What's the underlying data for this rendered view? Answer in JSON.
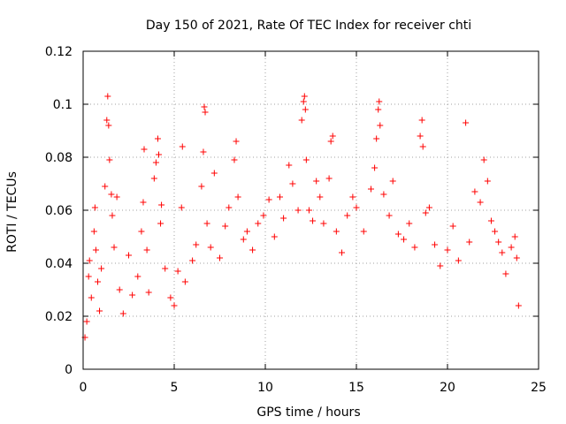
{
  "chart_data": {
    "type": "scatter",
    "title": "Day 150 of 2021, Rate Of TEC Index for receiver chti",
    "xlabel": "GPS time / hours",
    "ylabel": "ROTI / TECUs",
    "xlim": [
      0,
      25
    ],
    "ylim": [
      0,
      0.12
    ],
    "xticks": [
      0,
      5,
      10,
      15,
      20,
      25
    ],
    "xtick_labels": [
      "0",
      "5",
      "10",
      "15",
      "20",
      "25"
    ],
    "yticks": [
      0,
      0.02,
      0.04,
      0.06,
      0.08,
      0.1,
      0.12
    ],
    "ytick_labels": [
      "0",
      "0.02",
      "0.04",
      "0.06",
      "0.08",
      "0.1",
      "0.12"
    ],
    "grid": true,
    "marker": "plus",
    "color": "#ff0000",
    "series": [
      {
        "points": [
          [
            0.1,
            0.012
          ],
          [
            0.2,
            0.018
          ],
          [
            0.3,
            0.035
          ],
          [
            0.35,
            0.041
          ],
          [
            0.45,
            0.027
          ],
          [
            0.6,
            0.052
          ],
          [
            0.65,
            0.061
          ],
          [
            0.7,
            0.045
          ],
          [
            0.8,
            0.033
          ],
          [
            0.9,
            0.022
          ],
          [
            1.0,
            0.038
          ],
          [
            1.2,
            0.069
          ],
          [
            1.3,
            0.094
          ],
          [
            1.35,
            0.103
          ],
          [
            1.4,
            0.092
          ],
          [
            1.45,
            0.079
          ],
          [
            1.55,
            0.066
          ],
          [
            1.6,
            0.058
          ],
          [
            1.7,
            0.046
          ],
          [
            1.85,
            0.065
          ],
          [
            2.0,
            0.03
          ],
          [
            2.2,
            0.021
          ],
          [
            2.5,
            0.043
          ],
          [
            2.7,
            0.028
          ],
          [
            3.0,
            0.035
          ],
          [
            3.2,
            0.052
          ],
          [
            3.3,
            0.063
          ],
          [
            3.35,
            0.083
          ],
          [
            3.5,
            0.045
          ],
          [
            3.6,
            0.029
          ],
          [
            3.9,
            0.072
          ],
          [
            4.0,
            0.078
          ],
          [
            4.1,
            0.087
          ],
          [
            4.15,
            0.081
          ],
          [
            4.25,
            0.055
          ],
          [
            4.3,
            0.062
          ],
          [
            4.5,
            0.038
          ],
          [
            4.8,
            0.027
          ],
          [
            5.0,
            0.024
          ],
          [
            5.2,
            0.037
          ],
          [
            5.4,
            0.061
          ],
          [
            5.45,
            0.084
          ],
          [
            5.6,
            0.033
          ],
          [
            6.0,
            0.041
          ],
          [
            6.2,
            0.047
          ],
          [
            6.5,
            0.069
          ],
          [
            6.6,
            0.082
          ],
          [
            6.65,
            0.099
          ],
          [
            6.7,
            0.097
          ],
          [
            6.8,
            0.055
          ],
          [
            7.0,
            0.046
          ],
          [
            7.2,
            0.074
          ],
          [
            7.5,
            0.042
          ],
          [
            7.8,
            0.054
          ],
          [
            8.0,
            0.061
          ],
          [
            8.3,
            0.079
          ],
          [
            8.4,
            0.086
          ],
          [
            8.5,
            0.065
          ],
          [
            8.8,
            0.049
          ],
          [
            9.0,
            0.052
          ],
          [
            9.3,
            0.045
          ],
          [
            9.6,
            0.055
          ],
          [
            9.9,
            0.058
          ],
          [
            10.2,
            0.064
          ],
          [
            10.5,
            0.05
          ],
          [
            10.8,
            0.065
          ],
          [
            11.0,
            0.057
          ],
          [
            11.3,
            0.077
          ],
          [
            11.5,
            0.07
          ],
          [
            11.8,
            0.06
          ],
          [
            12.0,
            0.094
          ],
          [
            12.1,
            0.101
          ],
          [
            12.15,
            0.103
          ],
          [
            12.2,
            0.098
          ],
          [
            12.25,
            0.079
          ],
          [
            12.4,
            0.06
          ],
          [
            12.6,
            0.056
          ],
          [
            12.8,
            0.071
          ],
          [
            13.0,
            0.065
          ],
          [
            13.2,
            0.055
          ],
          [
            13.5,
            0.072
          ],
          [
            13.6,
            0.086
          ],
          [
            13.7,
            0.088
          ],
          [
            13.9,
            0.052
          ],
          [
            14.2,
            0.044
          ],
          [
            14.5,
            0.058
          ],
          [
            14.8,
            0.065
          ],
          [
            15.0,
            0.061
          ],
          [
            15.4,
            0.052
          ],
          [
            15.8,
            0.068
          ],
          [
            16.0,
            0.076
          ],
          [
            16.1,
            0.087
          ],
          [
            16.2,
            0.098
          ],
          [
            16.25,
            0.101
          ],
          [
            16.3,
            0.092
          ],
          [
            16.5,
            0.066
          ],
          [
            16.8,
            0.058
          ],
          [
            17.0,
            0.071
          ],
          [
            17.3,
            0.051
          ],
          [
            17.6,
            0.049
          ],
          [
            17.9,
            0.055
          ],
          [
            18.2,
            0.046
          ],
          [
            18.5,
            0.088
          ],
          [
            18.6,
            0.094
          ],
          [
            18.65,
            0.084
          ],
          [
            18.8,
            0.059
          ],
          [
            19.0,
            0.061
          ],
          [
            19.3,
            0.047
          ],
          [
            19.6,
            0.039
          ],
          [
            20.0,
            0.045
          ],
          [
            20.3,
            0.054
          ],
          [
            20.6,
            0.041
          ],
          [
            21.0,
            0.093
          ],
          [
            21.2,
            0.048
          ],
          [
            21.5,
            0.067
          ],
          [
            21.8,
            0.063
          ],
          [
            22.0,
            0.079
          ],
          [
            22.2,
            0.071
          ],
          [
            22.4,
            0.056
          ],
          [
            22.6,
            0.052
          ],
          [
            22.8,
            0.048
          ],
          [
            23.0,
            0.044
          ],
          [
            23.2,
            0.036
          ],
          [
            23.5,
            0.046
          ],
          [
            23.7,
            0.05
          ],
          [
            23.8,
            0.042
          ],
          [
            23.9,
            0.024
          ]
        ]
      }
    ]
  }
}
